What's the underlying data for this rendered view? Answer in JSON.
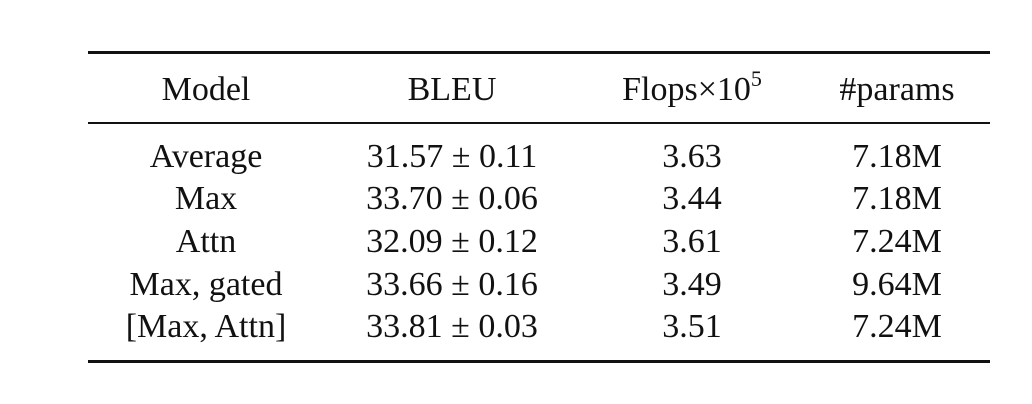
{
  "table": {
    "columns": [
      "Model",
      "BLEU",
      {
        "base": "Flops×10",
        "exponent": "5"
      },
      "#params"
    ],
    "rows": [
      [
        "Average",
        "31.57 ± 0.11",
        "3.63",
        "7.18M"
      ],
      [
        "Max",
        "33.70 ± 0.06",
        "3.44",
        "7.18M"
      ],
      [
        "Attn",
        "32.09 ± 0.12",
        "3.61",
        "7.24M"
      ],
      [
        "Max, gated",
        "33.66 ± 0.16",
        "3.49",
        "9.64M"
      ],
      [
        "[Max, Attn]",
        "33.81 ± 0.03",
        "3.51",
        "7.24M"
      ]
    ]
  }
}
